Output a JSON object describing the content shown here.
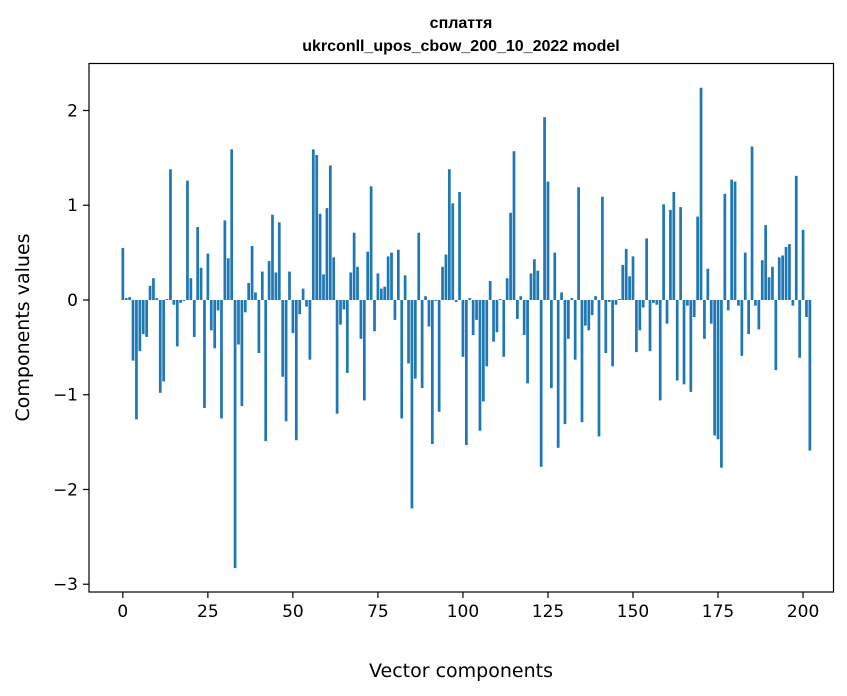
{
  "chart_data": {
    "type": "bar",
    "title_line1": "сплаття",
    "title_line2": "ukrconll_upos_cbow_200_10_2022 model",
    "xlabel": "Vector components",
    "ylabel": "Components values",
    "xlim": [
      -9.95,
      208.95
    ],
    "ylim": [
      -3.082,
      2.496
    ],
    "xticks": [
      0,
      25,
      50,
      75,
      100,
      125,
      150,
      175,
      200
    ],
    "yticks": [
      -3,
      -2,
      -1,
      0,
      1,
      2
    ],
    "ytick_labels": [
      "−3",
      "−2",
      "−1",
      "0",
      "1",
      "2"
    ],
    "bar_color": "#1f77b4",
    "grid": false,
    "values": [
      0.55,
      0.02,
      0.03,
      -0.64,
      -1.26,
      -0.54,
      -0.36,
      -0.39,
      0.15,
      0.23,
      0.02,
      -0.98,
      -0.86,
      0.01,
      1.38,
      -0.05,
      -0.49,
      -0.03,
      -0.01,
      1.26,
      0.23,
      -0.39,
      0.77,
      0.34,
      -1.14,
      0.49,
      -0.32,
      -0.51,
      -0.11,
      -1.25,
      0.84,
      0.44,
      1.59,
      -2.83,
      -0.47,
      -1.12,
      -0.13,
      0.18,
      0.57,
      0.08,
      -0.56,
      0.3,
      -1.49,
      0.41,
      0.9,
      0.29,
      0.82,
      -0.81,
      -1.28,
      0.3,
      -0.35,
      -1.48,
      -0.15,
      0.12,
      -0.07,
      -0.63,
      1.59,
      1.53,
      0.91,
      0.27,
      0.97,
      1.42,
      0.45,
      -1.2,
      -0.26,
      -0.1,
      -0.77,
      0.29,
      0.71,
      0.35,
      -0.41,
      -1.06,
      0.51,
      1.2,
      -0.33,
      0.28,
      0.12,
      0.14,
      0.46,
      0.5,
      -0.21,
      0.53,
      -1.25,
      0.26,
      -0.67,
      -2.2,
      -0.83,
      0.71,
      -0.93,
      0.04,
      -0.28,
      -1.52,
      -0.01,
      -1.18,
      0.35,
      0.48,
      1.38,
      1.02,
      -0.02,
      1.14,
      -0.6,
      -1.53,
      0.02,
      -0.37,
      -0.21,
      -1.38,
      -1.07,
      -0.7,
      0.2,
      -0.44,
      -0.34,
      0.01,
      -0.6,
      0.23,
      0.92,
      1.57,
      -0.2,
      0.04,
      -0.37,
      -0.88,
      0.28,
      0.43,
      0.31,
      -1.76,
      1.93,
      1.25,
      -0.93,
      0.5,
      -1.56,
      0.08,
      -1.31,
      -0.41,
      0.02,
      -0.63,
      1.19,
      -1.29,
      -0.27,
      -0.32,
      -0.16,
      0.04,
      -1.44,
      1.09,
      -0.56,
      -0.02,
      -0.7,
      -0.05,
      0.01,
      0.37,
      0.54,
      0.25,
      0.46,
      -0.55,
      -0.32,
      -0.08,
      0.65,
      -0.54,
      -0.03,
      -0.05,
      -1.06,
      1.01,
      -0.25,
      0.95,
      1.14,
      -0.85,
      0.98,
      -0.89,
      -0.06,
      -0.97,
      -0.18,
      0.88,
      2.24,
      -0.41,
      0.33,
      -0.25,
      -1.43,
      -1.47,
      -1.77,
      1.12,
      -0.11,
      1.27,
      1.25,
      -0.06,
      -0.59,
      0.5,
      -0.36,
      1.62,
      -0.06,
      -0.31,
      0.42,
      0.79,
      0.24,
      0.35,
      -0.74,
      0.45,
      0.47,
      0.56,
      0.59,
      -0.06,
      1.31,
      -0.61,
      0.74,
      -0.18,
      -1.59
    ]
  }
}
